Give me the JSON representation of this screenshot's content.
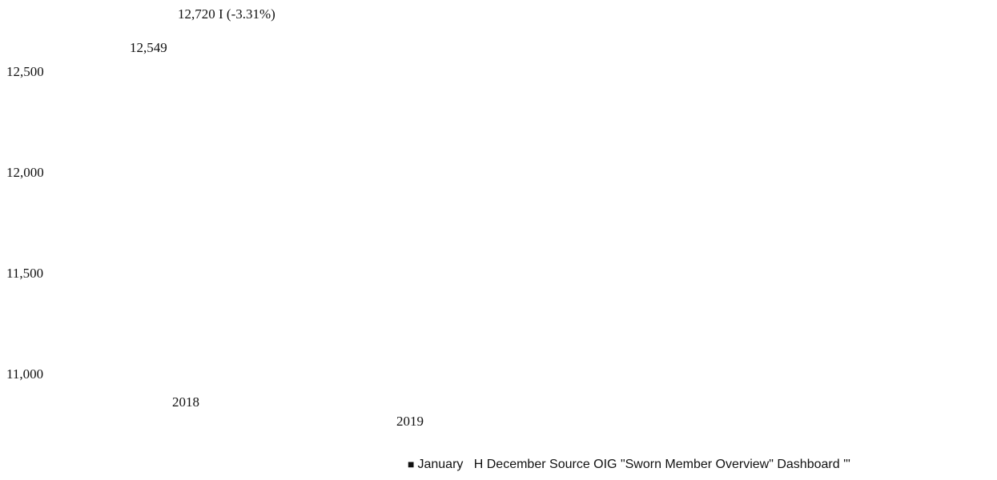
{
  "chart_data": {
    "type": "bar",
    "categories": [
      "2018",
      "2019"
    ],
    "series": [
      {
        "name": "January",
        "values": [
          12549,
          null
        ]
      },
      {
        "name": "December",
        "values": [
          null,
          null
        ]
      }
    ],
    "data_labels": [
      "12,720 I (-3.31%)",
      "12,549"
    ],
    "y_ticks": [
      "12,500",
      "12,000",
      "11,500",
      "11,000"
    ],
    "ylim": [
      11000,
      12500
    ],
    "grid": false,
    "legend_position": "bottom-right"
  },
  "legend": {
    "marker_1": "■",
    "label_1": "January",
    "marker_2": "H",
    "label_2": "December"
  },
  "source_note": "Source OIG \"Sworn Member Overview\" Dashboard '\""
}
